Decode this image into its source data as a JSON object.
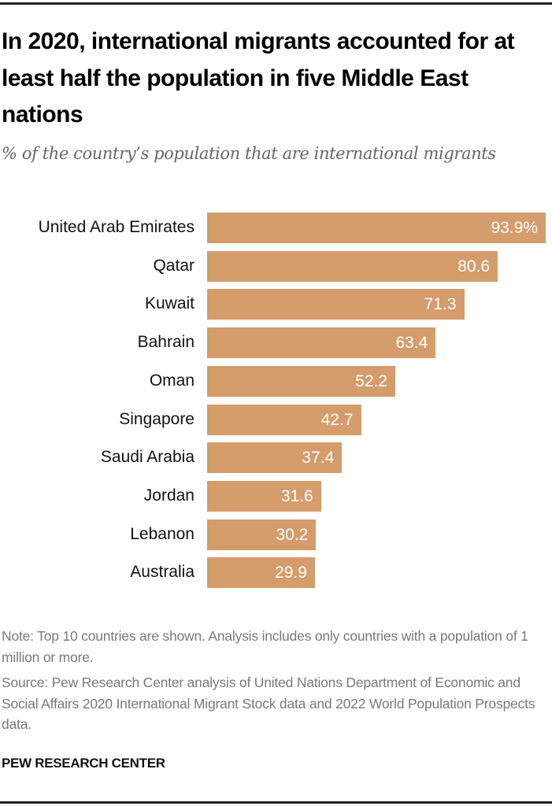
{
  "title": "In 2020, international migrants accounted for at least half the population in five Middle East nations",
  "subtitle": "% of the country’s population that are international migrants",
  "chart_data": {
    "type": "bar",
    "orientation": "horizontal",
    "title": "In 2020, international migrants accounted for at least half the population in five Middle East nations",
    "subtitle": "% of the country’s population that are international migrants",
    "categories": [
      "United Arab Emirates",
      "Qatar",
      "Kuwait",
      "Bahrain",
      "Oman",
      "Singapore",
      "Saudi Arabia",
      "Jordan",
      "Lebanon",
      "Australia"
    ],
    "values": [
      93.9,
      80.6,
      71.3,
      63.4,
      52.2,
      42.7,
      37.4,
      31.6,
      30.2,
      29.9
    ],
    "data_labels": [
      "93.9%",
      "80.6",
      "71.3",
      "63.4",
      "52.2",
      "42.7",
      "37.4",
      "31.6",
      "30.2",
      "29.9"
    ],
    "xlim": [
      0,
      93.9
    ],
    "grid": false,
    "color": "#d59c6c"
  },
  "notes": {
    "note": "Note: Top 10 countries are shown. Analysis includes only countries with a population of 1 million or more.",
    "source": "Source: Pew Research Center analysis of United Nations Department of Economic and Social Affairs 2020 International Migrant Stock data and 2022 World Population Prospects data."
  },
  "brand": "PEW RESEARCH CENTER"
}
